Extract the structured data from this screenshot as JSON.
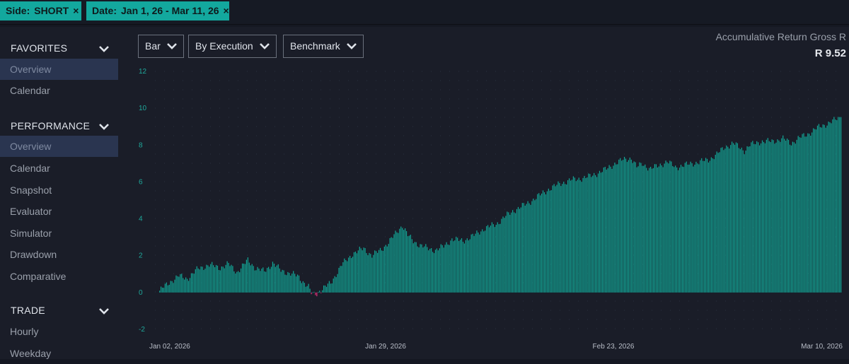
{
  "filters": [
    {
      "label": "Side:",
      "value": "SHORT"
    },
    {
      "label": "Date:",
      "value": "Jan 1, 26 - Mar 11, 26"
    }
  ],
  "close_glyph": "×",
  "sidebar": {
    "sections": [
      {
        "title": "FAVORITES",
        "items": [
          {
            "label": "Overview",
            "active": true
          },
          {
            "label": "Calendar"
          }
        ]
      },
      {
        "title": "PERFORMANCE",
        "items": [
          {
            "label": "Overview",
            "active": true
          },
          {
            "label": "Calendar"
          },
          {
            "label": "Snapshot"
          },
          {
            "label": "Evaluator"
          },
          {
            "label": "Simulator"
          },
          {
            "label": "Drawdown"
          },
          {
            "label": "Comparative"
          }
        ]
      },
      {
        "title": "TRADE",
        "items": [
          {
            "label": "Hourly"
          },
          {
            "label": "Weekday"
          }
        ]
      }
    ]
  },
  "toolbar": {
    "chart_type": "Bar",
    "grouping": "By Execution",
    "benchmark": "Benchmark"
  },
  "summary": {
    "title": "Accumulative Return Gross R",
    "value": "R 9.52"
  },
  "colors": {
    "positive": "#12a898",
    "negative": "#e0307a",
    "accent": "#13a89e"
  },
  "chart_data": {
    "type": "bar",
    "y_ticks": [
      "12",
      "10",
      "8",
      "6",
      "4",
      "2",
      "0",
      "-2"
    ],
    "ylim": [
      -2,
      12
    ],
    "x_ticks": [
      "Jan 02, 2026",
      "Jan 29, 2026",
      "Feb 23, 2026",
      "Mar 10, 2026"
    ],
    "grid": "dotted",
    "series_anchors": [
      [
        0,
        0.1
      ],
      [
        8,
        0.6
      ],
      [
        14,
        0.9
      ],
      [
        20,
        0.75
      ],
      [
        28,
        1.3
      ],
      [
        36,
        1.5
      ],
      [
        44,
        1.35
      ],
      [
        50,
        1.55
      ],
      [
        56,
        1.1
      ],
      [
        64,
        1.75
      ],
      [
        70,
        1.3
      ],
      [
        76,
        1.15
      ],
      [
        82,
        1.6
      ],
      [
        88,
        1.2
      ],
      [
        94,
        1.05
      ],
      [
        100,
        0.9
      ],
      [
        104,
        0.6
      ],
      [
        108,
        0.3
      ],
      [
        110,
        -0.05
      ],
      [
        112,
        -0.1
      ],
      [
        114,
        -0.05
      ],
      [
        116,
        0.1
      ],
      [
        124,
        0.5
      ],
      [
        132,
        1.5
      ],
      [
        140,
        2.1
      ],
      [
        148,
        2.4
      ],
      [
        154,
        2.0
      ],
      [
        160,
        2.3
      ],
      [
        166,
        2.7
      ],
      [
        172,
        3.3
      ],
      [
        176,
        3.65
      ],
      [
        180,
        3.1
      ],
      [
        184,
        2.8
      ],
      [
        188,
        2.6
      ],
      [
        194,
        2.4
      ],
      [
        200,
        2.3
      ],
      [
        206,
        2.5
      ],
      [
        212,
        2.9
      ],
      [
        220,
        2.8
      ],
      [
        228,
        3.1
      ],
      [
        236,
        3.5
      ],
      [
        244,
        3.7
      ],
      [
        250,
        4.1
      ],
      [
        258,
        4.5
      ],
      [
        266,
        4.8
      ],
      [
        274,
        5.2
      ],
      [
        282,
        5.6
      ],
      [
        290,
        5.9
      ],
      [
        298,
        6.1
      ],
      [
        306,
        6.2
      ],
      [
        312,
        6.3
      ],
      [
        318,
        6.5
      ],
      [
        324,
        6.7
      ],
      [
        330,
        7.0
      ],
      [
        336,
        7.2
      ],
      [
        342,
        7.3
      ],
      [
        346,
        6.8
      ],
      [
        350,
        7.0
      ],
      [
        356,
        6.7
      ],
      [
        362,
        6.9
      ],
      [
        368,
        7.1
      ],
      [
        374,
        6.8
      ],
      [
        380,
        6.9
      ],
      [
        386,
        7.0
      ],
      [
        392,
        7.1
      ],
      [
        398,
        7.2
      ],
      [
        404,
        7.5
      ],
      [
        410,
        7.9
      ],
      [
        416,
        8.1
      ],
      [
        420,
        7.9
      ],
      [
        424,
        7.7
      ],
      [
        428,
        8.0
      ],
      [
        436,
        8.2
      ],
      [
        444,
        8.2
      ],
      [
        452,
        8.35
      ],
      [
        458,
        8.1
      ],
      [
        464,
        8.4
      ],
      [
        470,
        8.6
      ],
      [
        476,
        8.9
      ],
      [
        482,
        9.1
      ],
      [
        488,
        9.3
      ],
      [
        494,
        9.52
      ]
    ]
  }
}
